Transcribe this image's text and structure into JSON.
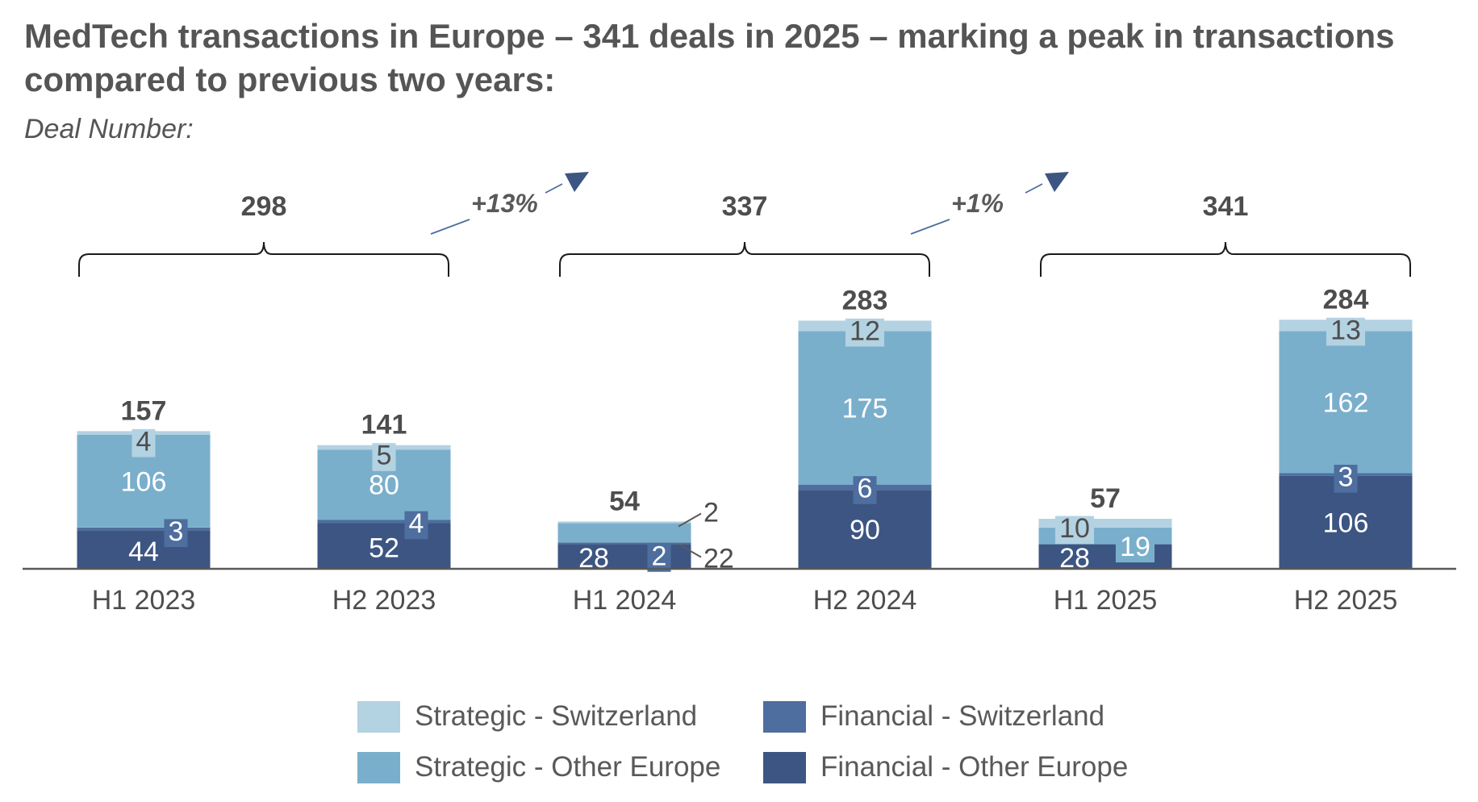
{
  "title": "MedTech transactions in Europe – 341 deals in 2025 – marking a peak in transactions compared to previous two years:",
  "subtitle": "Deal Number:",
  "colors": {
    "strategic_switzerland": "#b3d2e2",
    "strategic_other_europe": "#7aafcc",
    "financial_switzerland": "#4d6e9e",
    "financial_other_europe": "#3d5582",
    "text": "#4d4d4d",
    "axis": "#595959"
  },
  "chart_data": {
    "type": "bar",
    "stacked": true,
    "categories": [
      "H1 2023",
      "H2 2023",
      "H1 2024",
      "H2 2024",
      "H1 2025",
      "H2 2025"
    ],
    "series": [
      {
        "name": "Financial - Other Europe",
        "values": [
          44,
          52,
          28,
          90,
          28,
          106
        ]
      },
      {
        "name": "Financial - Switzerland",
        "values": [
          3,
          4,
          2,
          6,
          0,
          3
        ]
      },
      {
        "name": "Strategic - Other Europe",
        "values": [
          106,
          80,
          22,
          175,
          19,
          162
        ]
      },
      {
        "name": "Strategic - Switzerland",
        "values": [
          4,
          5,
          2,
          12,
          10,
          13
        ]
      }
    ],
    "totals": [
      157,
      141,
      54,
      283,
      57,
      284
    ],
    "annual_totals": [
      {
        "year": "2023",
        "total": 298
      },
      {
        "year": "2024",
        "total": 337
      },
      {
        "year": "2025",
        "total": 341
      }
    ],
    "growth_labels": [
      "+13%",
      "+1%"
    ],
    "ylim": [
      0,
      300
    ],
    "legend_position": "bottom",
    "grid": false
  }
}
